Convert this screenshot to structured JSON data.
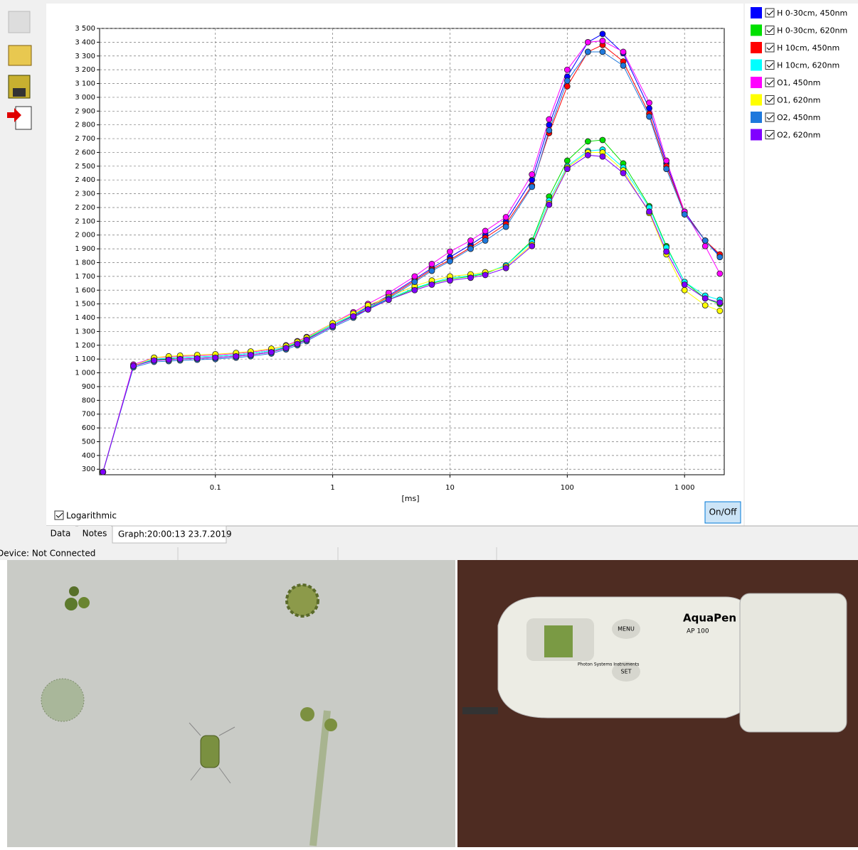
{
  "chart_data": {
    "type": "line",
    "xscale": "log",
    "grid": true,
    "xlabel": "[ms]",
    "xlim": [
      0.0103,
      2180
    ],
    "ylim": [
      260,
      3500
    ],
    "xticks": [
      0.1,
      1,
      10,
      100,
      {
        "value": 1000,
        "label": "1 000"
      }
    ],
    "yticks": [
      300,
      400,
      500,
      600,
      700,
      800,
      900,
      {
        "value": 1000,
        "label": "1 000"
      },
      {
        "value": 1100,
        "label": "1 100"
      },
      {
        "value": 1200,
        "label": "1 200"
      },
      {
        "value": 1300,
        "label": "1 300"
      },
      {
        "value": 1400,
        "label": "1 400"
      },
      {
        "value": 1500,
        "label": "1 500"
      },
      {
        "value": 1600,
        "label": "1 600"
      },
      {
        "value": 1700,
        "label": "1 700"
      },
      {
        "value": 1800,
        "label": "1 800"
      },
      {
        "value": 1900,
        "label": "1 900"
      },
      {
        "value": 2000,
        "label": "2 000"
      },
      {
        "value": 2100,
        "label": "2 100"
      },
      {
        "value": 2200,
        "label": "2 200"
      },
      {
        "value": 2300,
        "label": "2 300"
      },
      {
        "value": 2400,
        "label": "2 400"
      },
      {
        "value": 2500,
        "label": "2 500"
      },
      {
        "value": 2600,
        "label": "2 600"
      },
      {
        "value": 2700,
        "label": "2 700"
      },
      {
        "value": 2800,
        "label": "2 800"
      },
      {
        "value": 2900,
        "label": "2 900"
      },
      {
        "value": 3000,
        "label": "3 000"
      },
      {
        "value": 3100,
        "label": "3 100"
      },
      {
        "value": 3200,
        "label": "3 200"
      },
      {
        "value": 3300,
        "label": "3 300"
      },
      {
        "value": 3400,
        "label": "3 400"
      },
      {
        "value": 3500,
        "label": "3 500"
      }
    ],
    "x": [
      0.011,
      0.02,
      0.03,
      0.04,
      0.05,
      0.07,
      0.1,
      0.15,
      0.2,
      0.3,
      0.4,
      0.5,
      0.6,
      1,
      1.5,
      2,
      3,
      5,
      7,
      10,
      15,
      20,
      30,
      50,
      70,
      100,
      150,
      200,
      300,
      500,
      700,
      1000,
      1500,
      2000
    ],
    "series": [
      {
        "name": "H 0-30cm, 450nm",
        "color": "#0000ff",
        "values": [
          280,
          1050,
          1100,
          1105,
          1110,
          1115,
          1120,
          1130,
          1140,
          1160,
          1190,
          1220,
          1250,
          1350,
          1420,
          1480,
          1560,
          1680,
          1760,
          1840,
          1930,
          2000,
          2100,
          2400,
          2800,
          3150,
          3400,
          3460,
          3320,
          2920,
          2520,
          2170,
          1960,
          1850
        ]
      },
      {
        "name": "H 0-30cm, 620nm",
        "color": "#00e000",
        "values": [
          280,
          1050,
          1095,
          1100,
          1110,
          1115,
          1120,
          1130,
          1140,
          1160,
          1185,
          1215,
          1245,
          1350,
          1415,
          1470,
          1530,
          1610,
          1650,
          1680,
          1700,
          1720,
          1780,
          1960,
          2280,
          2540,
          2680,
          2690,
          2520,
          2210,
          1920,
          1660,
          1540,
          1500
        ]
      },
      {
        "name": "H 10cm, 450nm",
        "color": "#ff0000",
        "values": [
          280,
          1050,
          1090,
          1095,
          1100,
          1105,
          1110,
          1120,
          1130,
          1150,
          1180,
          1210,
          1240,
          1340,
          1410,
          1470,
          1550,
          1670,
          1750,
          1820,
          1910,
          1980,
          2080,
          2360,
          2740,
          3080,
          3330,
          3380,
          3260,
          2880,
          2500,
          2160,
          1960,
          1860
        ]
      },
      {
        "name": "H 10cm, 620nm",
        "color": "#00ffff",
        "values": [
          280,
          1050,
          1100,
          1105,
          1110,
          1115,
          1120,
          1130,
          1140,
          1160,
          1190,
          1220,
          1250,
          1350,
          1420,
          1470,
          1540,
          1615,
          1655,
          1690,
          1705,
          1725,
          1780,
          1950,
          2250,
          2500,
          2610,
          2620,
          2490,
          2200,
          1910,
          1660,
          1560,
          1530
        ]
      },
      {
        "name": "O1, 450nm",
        "color": "#ff00ff",
        "values": [
          280,
          1060,
          1110,
          1115,
          1120,
          1125,
          1130,
          1140,
          1150,
          1170,
          1200,
          1230,
          1260,
          1360,
          1440,
          1500,
          1580,
          1700,
          1790,
          1880,
          1960,
          2030,
          2130,
          2440,
          2840,
          3200,
          3400,
          3410,
          3330,
          2960,
          2540,
          2170,
          1920,
          1720
        ]
      },
      {
        "name": "O1, 620nm",
        "color": "#ffff00",
        "values": [
          280,
          1050,
          1110,
          1120,
          1125,
          1130,
          1135,
          1145,
          1155,
          1175,
          1195,
          1225,
          1255,
          1360,
          1430,
          1490,
          1550,
          1630,
          1670,
          1700,
          1715,
          1730,
          1770,
          1930,
          2230,
          2490,
          2600,
          2600,
          2470,
          2160,
          1860,
          1600,
          1490,
          1450
        ]
      },
      {
        "name": "O2, 450nm",
        "color": "#1e78dc",
        "values": [
          280,
          1040,
          1080,
          1085,
          1090,
          1095,
          1100,
          1110,
          1120,
          1140,
          1170,
          1200,
          1230,
          1330,
          1400,
          1460,
          1540,
          1660,
          1740,
          1810,
          1900,
          1960,
          2060,
          2350,
          2760,
          3120,
          3330,
          3330,
          3230,
          2860,
          2480,
          2150,
          1960,
          1840
        ]
      },
      {
        "name": "O2, 620nm",
        "color": "#8000ff",
        "values": [
          280,
          1050,
          1090,
          1095,
          1100,
          1105,
          1110,
          1120,
          1130,
          1150,
          1180,
          1210,
          1240,
          1340,
          1410,
          1460,
          1530,
          1600,
          1640,
          1670,
          1690,
          1710,
          1760,
          1920,
          2220,
          2480,
          2580,
          2570,
          2450,
          2170,
          1880,
          1640,
          1540,
          1510
        ]
      }
    ]
  },
  "ui": {
    "logarithmic": "Logarithmic",
    "on_off": "On/Off",
    "tabs": [
      "Data",
      "Notes",
      "Graph:20:00:13  23.7.2019"
    ],
    "status": "Device: Not Connected"
  },
  "photo": {
    "brand": "AquaPen",
    "model": "AP 100",
    "menu": "MENU",
    "set": "SET",
    "maker": "Photon Systems Instruments"
  }
}
